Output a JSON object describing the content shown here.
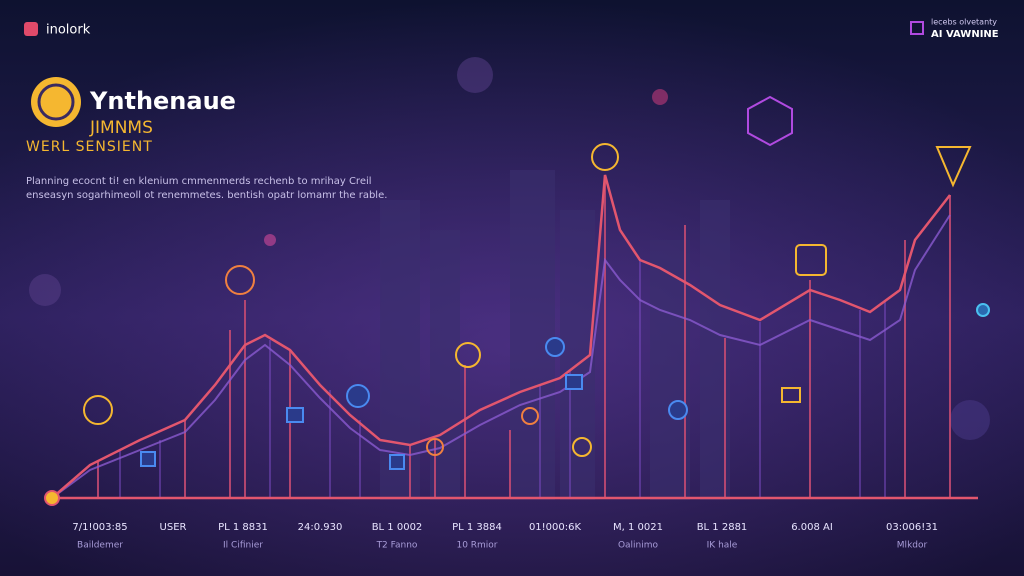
{
  "header": {
    "brand": "inolork",
    "badge_line1": "lecebs olvetanty",
    "badge_line2": "AI VAWNINE"
  },
  "hero": {
    "title": "Ynthenaue",
    "subtitle": "JIMNMS",
    "tagline": "WERL SENSIENT",
    "description": [
      "Planning ecocnt ti! en klenium cmmenmerds rechenb to mrihay Creil",
      "enseasyn sogarhimeoll ot renemmetes. bentish opatr lomamr the rable."
    ]
  },
  "footer": {
    "items": [
      {
        "value": "7/1!003:85",
        "label": "Baildemer"
      },
      {
        "value": "USER"
      },
      {
        "value": "PL 1 8831",
        "label": "Il Cifinier"
      },
      {
        "value": "24:0.930"
      },
      {
        "value": "BL 1 0002",
        "label": "T2 Fanno"
      },
      {
        "value": "PL 1 3884",
        "label": "10 Rmior"
      },
      {
        "value": "01!000:6K"
      },
      {
        "value": "M, 1 0021",
        "label": "Oalinimo"
      },
      {
        "value": "BL 1 2881",
        "label": "IK hale"
      },
      {
        "value": "6.008 AI"
      },
      {
        "value": "03:006!31",
        "label": "Mlkdor"
      }
    ]
  }
}
